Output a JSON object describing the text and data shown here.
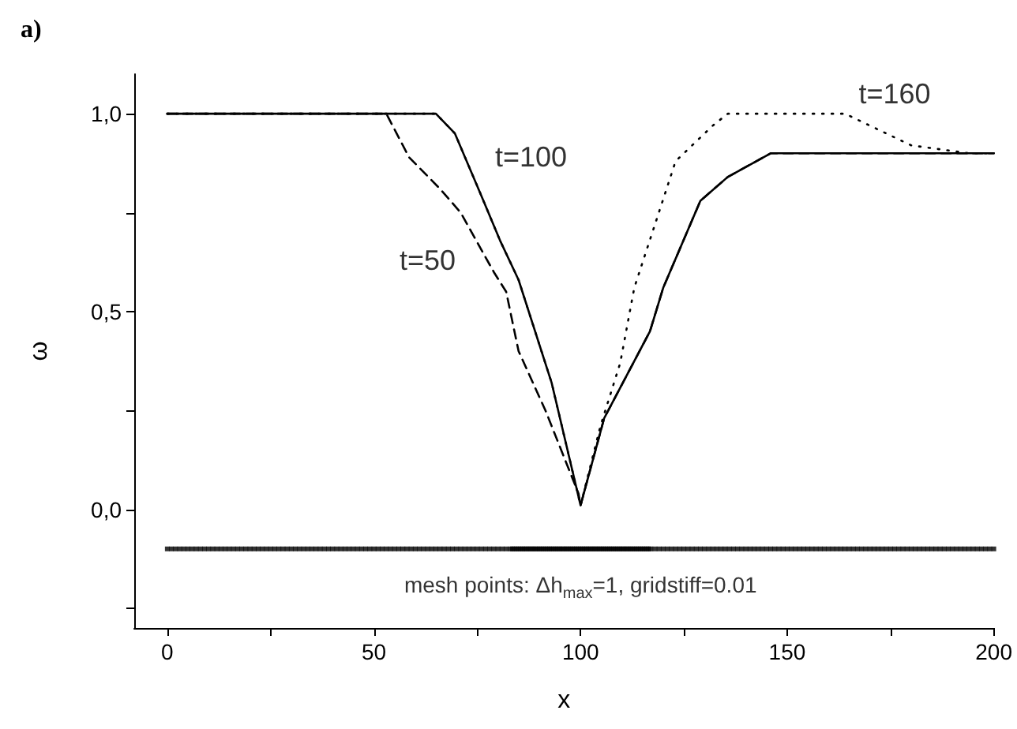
{
  "chart_data": {
    "type": "line",
    "title": "a)",
    "xlabel": "x",
    "ylabel": "ω",
    "xlim": [
      -8,
      200
    ],
    "xticks": [
      0,
      {
        "value": 25,
        "label": null
      },
      50,
      {
        "value": 75,
        "label": null
      },
      100,
      {
        "value": 125,
        "label": null
      },
      150,
      {
        "value": 175,
        "label": null
      },
      200
    ],
    "ylim": [
      -0.3,
      1.1
    ],
    "yticks": [
      {
        "value": -0.25,
        "label": null
      },
      {
        "value": 0,
        "label": "0,0"
      },
      {
        "value": 0.25,
        "label": null
      },
      {
        "value": 0.5,
        "label": "0,5"
      },
      {
        "value": 0.75,
        "label": null
      },
      {
        "value": 1,
        "label": "1,0"
      }
    ],
    "grid": false,
    "marker": "none",
    "series": [
      {
        "name": "t=50",
        "color": "#000000",
        "line_style": "dashed",
        "x": [
          0,
          53,
          58.5,
          66,
          71,
          79,
          82,
          85,
          91.5,
          99.5,
          100,
          105.7,
          116.8,
          120,
          129,
          135.6,
          146,
          200
        ],
        "values": [
          1.0,
          1.0,
          0.89,
          0.81,
          0.75,
          0.6,
          0.55,
          0.4,
          0.25,
          0.04,
          0.01,
          0.23,
          0.45,
          0.56,
          0.78,
          0.84,
          0.9,
          0.9
        ]
      },
      {
        "name": "t=160",
        "color": "#000000",
        "line_style": "dotted",
        "x": [
          0,
          65,
          69.6,
          75.7,
          80.5,
          85,
          93,
          100,
          104.8,
          109.6,
          113,
          123,
          132,
          135.6,
          164,
          180,
          194,
          200
        ],
        "values": [
          1.0,
          1.0,
          0.95,
          0.8,
          0.68,
          0.58,
          0.32,
          0.01,
          0.21,
          0.37,
          0.56,
          0.88,
          0.97,
          1.0,
          1.0,
          0.92,
          0.9,
          0.9
        ]
      },
      {
        "name": "t=100",
        "color": "#000000",
        "line_style": "solid",
        "x": [
          0,
          65,
          69.6,
          75.7,
          80.5,
          85,
          93,
          100,
          105.7,
          116.8,
          120,
          129,
          135.6,
          146,
          200
        ],
        "values": [
          1.0,
          1.0,
          0.95,
          0.8,
          0.68,
          0.58,
          0.32,
          0.01,
          0.23,
          0.45,
          0.56,
          0.78,
          0.84,
          0.9,
          0.9
        ]
      },
      {
        "type": "scatter",
        "color": "#000000",
        "marker": "square",
        "x": [
          0,
          1,
          2,
          3,
          4,
          5,
          6,
          7,
          8,
          9,
          10,
          11,
          12,
          13,
          14,
          15,
          16,
          17,
          18,
          19,
          20,
          21,
          22,
          23,
          24,
          25,
          26,
          27,
          28,
          29,
          30,
          31,
          32,
          33,
          34,
          35,
          36,
          37,
          38,
          39,
          40,
          41,
          42,
          43,
          44,
          45,
          46,
          47,
          48,
          49,
          50,
          51,
          52,
          53,
          54,
          55,
          56,
          57,
          58,
          59,
          60,
          61,
          62,
          63,
          64,
          65,
          66,
          67,
          68,
          69,
          70,
          71,
          72,
          73,
          74,
          75,
          76,
          77,
          78,
          79,
          80,
          81,
          82,
          83,
          83.5,
          84,
          84.5,
          85,
          85.5,
          86,
          86.5,
          87,
          87.5,
          88,
          88.5,
          89,
          89.5,
          90,
          90.5,
          91,
          91.5,
          92,
          92.5,
          93,
          93.5,
          94,
          94.5,
          95,
          95.5,
          96,
          96.5,
          97,
          97.5,
          98,
          98.5,
          99,
          99.5,
          100,
          100.5,
          101,
          101.5,
          102,
          102.5,
          103,
          103.5,
          104,
          104.5,
          105,
          105.5,
          106,
          106.5,
          107,
          107.5,
          108,
          108.5,
          109,
          109.5,
          110,
          110.5,
          111,
          111.5,
          112,
          112.5,
          113,
          113.5,
          114,
          114.5,
          115,
          115.5,
          116,
          116.5,
          117,
          118,
          119,
          120,
          121,
          122,
          123,
          124,
          125,
          126,
          127,
          128,
          129,
          130,
          131,
          132,
          133,
          134,
          135,
          136,
          137,
          138,
          139,
          140,
          141,
          142,
          143,
          144,
          145,
          146,
          147,
          148,
          149,
          150,
          151,
          152,
          153,
          154,
          155,
          156,
          157,
          158,
          159,
          160,
          161,
          162,
          163,
          164,
          165,
          166,
          167,
          168,
          169,
          170,
          171,
          172,
          173,
          174,
          175,
          176,
          177,
          178,
          179,
          180,
          181,
          182,
          183,
          184,
          185,
          186,
          187,
          188,
          189,
          190,
          191,
          192,
          193,
          194,
          195,
          196,
          197,
          198,
          199,
          200
        ],
        "values": [
          -0.1,
          -0.1,
          -0.1,
          -0.1,
          -0.1,
          -0.1,
          -0.1,
          -0.1,
          -0.1,
          -0.1,
          -0.1,
          -0.1,
          -0.1,
          -0.1,
          -0.1,
          -0.1,
          -0.1,
          -0.1,
          -0.1,
          -0.1,
          -0.1,
          -0.1,
          -0.1,
          -0.1,
          -0.1,
          -0.1,
          -0.1,
          -0.1,
          -0.1,
          -0.1,
          -0.1,
          -0.1,
          -0.1,
          -0.1,
          -0.1,
          -0.1,
          -0.1,
          -0.1,
          -0.1,
          -0.1,
          -0.1,
          -0.1,
          -0.1,
          -0.1,
          -0.1,
          -0.1,
          -0.1,
          -0.1,
          -0.1,
          -0.1,
          -0.1,
          -0.1,
          -0.1,
          -0.1,
          -0.1,
          -0.1,
          -0.1,
          -0.1,
          -0.1,
          -0.1,
          -0.1,
          -0.1,
          -0.1,
          -0.1,
          -0.1,
          -0.1,
          -0.1,
          -0.1,
          -0.1,
          -0.1,
          -0.1,
          -0.1,
          -0.1,
          -0.1,
          -0.1,
          -0.1,
          -0.1,
          -0.1,
          -0.1,
          -0.1,
          -0.1,
          -0.1,
          -0.1,
          -0.1,
          -0.1,
          -0.1,
          -0.1,
          -0.1,
          -0.1,
          -0.1,
          -0.1,
          -0.1,
          -0.1,
          -0.1,
          -0.1,
          -0.1,
          -0.1,
          -0.1,
          -0.1,
          -0.1,
          -0.1,
          -0.1,
          -0.1,
          -0.1,
          -0.1,
          -0.1,
          -0.1,
          -0.1,
          -0.1,
          -0.1,
          -0.1,
          -0.1,
          -0.1,
          -0.1,
          -0.1,
          -0.1,
          -0.1,
          -0.1,
          -0.1,
          -0.1,
          -0.1,
          -0.1,
          -0.1,
          -0.1,
          -0.1,
          -0.1,
          -0.1,
          -0.1,
          -0.1,
          -0.1,
          -0.1,
          -0.1,
          -0.1,
          -0.1,
          -0.1,
          -0.1,
          -0.1,
          -0.1,
          -0.1,
          -0.1,
          -0.1,
          -0.1,
          -0.1,
          -0.1,
          -0.1,
          -0.1,
          -0.1,
          -0.1,
          -0.1,
          -0.1,
          -0.1,
          -0.1,
          -0.1,
          -0.1,
          -0.1,
          -0.1,
          -0.1,
          -0.1,
          -0.1,
          -0.1,
          -0.1,
          -0.1,
          -0.1,
          -0.1,
          -0.1,
          -0.1,
          -0.1,
          -0.1,
          -0.1,
          -0.1,
          -0.1,
          -0.1,
          -0.1,
          -0.1,
          -0.1,
          -0.1,
          -0.1,
          -0.1,
          -0.1,
          -0.1,
          -0.1,
          -0.1,
          -0.1,
          -0.1,
          -0.1,
          -0.1,
          -0.1,
          -0.1,
          -0.1,
          -0.1,
          -0.1,
          -0.1,
          -0.1,
          -0.1,
          -0.1,
          -0.1,
          -0.1,
          -0.1,
          -0.1,
          -0.1,
          -0.1,
          -0.1,
          -0.1,
          -0.1,
          -0.1,
          -0.1,
          -0.1,
          -0.1,
          -0.1,
          -0.1,
          -0.1,
          -0.1,
          -0.1,
          -0.1,
          -0.1,
          -0.1,
          -0.1,
          -0.1,
          -0.1,
          -0.1,
          -0.1,
          -0.1,
          -0.1,
          -0.1,
          -0.1,
          -0.1,
          -0.1,
          -0.1,
          -0.1,
          -0.1,
          -0.1,
          -0.1,
          -0.1,
          -0.1,
          -0.1
        ]
      }
    ],
    "annotations": [
      "mesh points: Δh$_{max}$=1, gridstiff=0.01"
    ]
  }
}
